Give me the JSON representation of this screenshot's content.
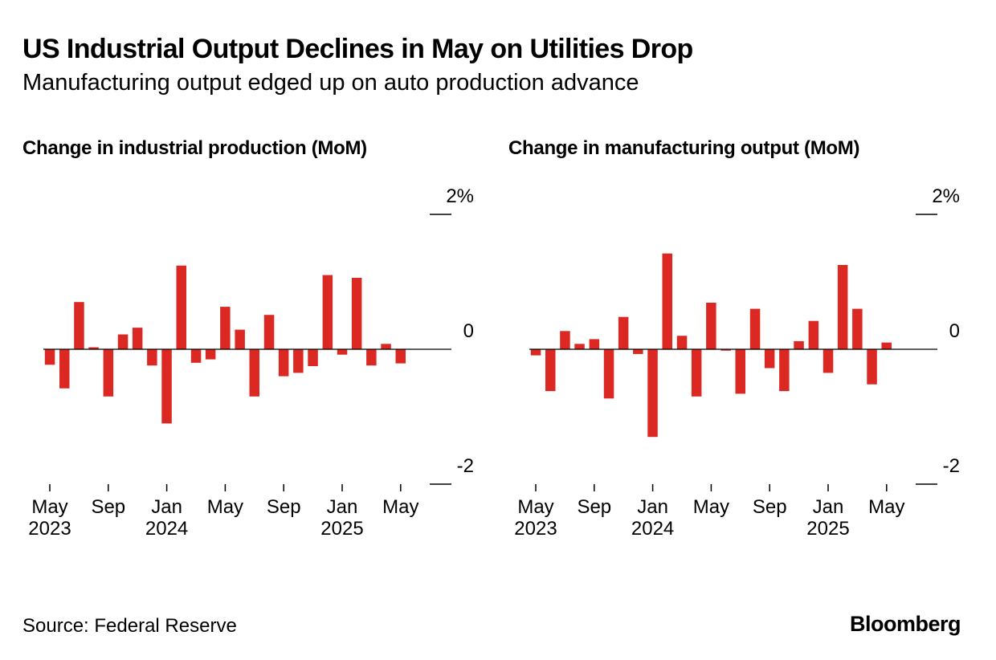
{
  "title": "US Industrial Output Declines in May on Utilities Drop",
  "subtitle": "Manufacturing output edged up on auto production advance",
  "source": "Source: Federal Reserve",
  "brand": "Bloomberg",
  "colors": {
    "bar": "#dc2822",
    "axis": "#000000",
    "text": "#000000",
    "background": "#ffffff"
  },
  "chart_data": [
    {
      "type": "bar",
      "title": "Change in industrial production (MoM)",
      "ylim": [
        -2,
        2
      ],
      "yticks": [
        {
          "value": 2,
          "label": "2%"
        },
        {
          "value": 0,
          "label": "0"
        },
        {
          "value": -2,
          "label": "-2"
        }
      ],
      "x_ticks": [
        {
          "index": 0,
          "label": "May",
          "sublabel": "2023"
        },
        {
          "index": 4,
          "label": "Sep",
          "sublabel": ""
        },
        {
          "index": 8,
          "label": "Jan",
          "sublabel": "2024"
        },
        {
          "index": 12,
          "label": "May",
          "sublabel": ""
        },
        {
          "index": 16,
          "label": "Sep",
          "sublabel": ""
        },
        {
          "index": 20,
          "label": "Jan",
          "sublabel": "2025"
        },
        {
          "index": 24,
          "label": "May",
          "sublabel": ""
        }
      ],
      "categories": [
        "2023-05",
        "2023-06",
        "2023-07",
        "2023-08",
        "2023-09",
        "2023-10",
        "2023-11",
        "2023-12",
        "2024-01",
        "2024-02",
        "2024-03",
        "2024-04",
        "2024-05",
        "2024-06",
        "2024-07",
        "2024-08",
        "2024-09",
        "2024-10",
        "2024-11",
        "2024-12",
        "2025-01",
        "2025-02",
        "2025-03",
        "2025-04",
        "2025-05"
      ],
      "values": [
        -0.23,
        -0.58,
        0.7,
        0.03,
        -0.7,
        0.22,
        0.32,
        -0.24,
        -1.1,
        1.24,
        -0.2,
        -0.15,
        0.63,
        0.29,
        -0.7,
        0.51,
        -0.4,
        -0.35,
        -0.25,
        1.1,
        -0.08,
        1.06,
        -0.24,
        0.08,
        -0.21
      ],
      "grid": false
    },
    {
      "type": "bar",
      "title": "Change in manufacturing output (MoM)",
      "ylim": [
        -2,
        2
      ],
      "yticks": [
        {
          "value": 2,
          "label": "2%"
        },
        {
          "value": 0,
          "label": "0"
        },
        {
          "value": -2,
          "label": "-2"
        }
      ],
      "x_ticks": [
        {
          "index": 0,
          "label": "May",
          "sublabel": "2023"
        },
        {
          "index": 4,
          "label": "Sep",
          "sublabel": ""
        },
        {
          "index": 8,
          "label": "Jan",
          "sublabel": "2024"
        },
        {
          "index": 12,
          "label": "May",
          "sublabel": ""
        },
        {
          "index": 16,
          "label": "Sep",
          "sublabel": ""
        },
        {
          "index": 20,
          "label": "Jan",
          "sublabel": "2025"
        },
        {
          "index": 24,
          "label": "May",
          "sublabel": ""
        }
      ],
      "categories": [
        "2023-05",
        "2023-06",
        "2023-07",
        "2023-08",
        "2023-09",
        "2023-10",
        "2023-11",
        "2023-12",
        "2024-01",
        "2024-02",
        "2024-03",
        "2024-04",
        "2024-05",
        "2024-06",
        "2024-07",
        "2024-08",
        "2024-09",
        "2024-10",
        "2024-11",
        "2024-12",
        "2025-01",
        "2025-02",
        "2025-03",
        "2025-04",
        "2025-05"
      ],
      "values": [
        -0.09,
        -0.62,
        0.27,
        0.08,
        0.15,
        -0.73,
        0.48,
        -0.07,
        -1.3,
        1.42,
        0.2,
        -0.7,
        0.69,
        -0.02,
        -0.66,
        0.6,
        -0.28,
        -0.62,
        0.12,
        0.42,
        -0.35,
        1.25,
        0.6,
        -0.52,
        0.1
      ],
      "grid": false
    }
  ]
}
